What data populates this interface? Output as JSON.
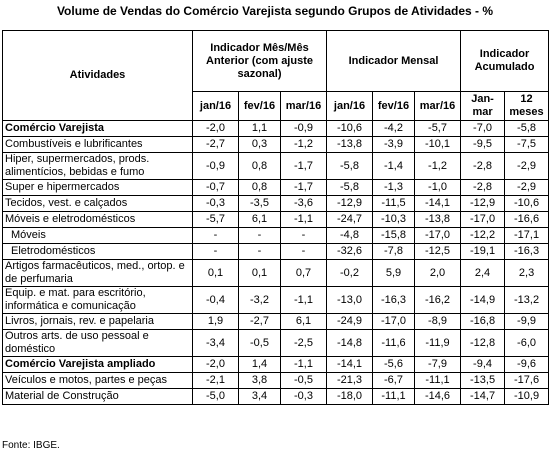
{
  "title": "Volume de Vendas do Comércio Varejista segundo Grupos de Atividades - %",
  "table": {
    "header": {
      "activity": "Atividades",
      "groups": [
        {
          "label": "Indicador Mês/Mês Anterior (com ajuste sazonal)",
          "columns": [
            "jan/16",
            "fev/16",
            "mar/16"
          ]
        },
        {
          "label": "Indicador Mensal",
          "columns": [
            "jan/16",
            "fev/16",
            "mar/16"
          ]
        },
        {
          "label": "Indicador Acumulado",
          "columns": [
            "Jan-mar",
            "12 meses"
          ]
        }
      ]
    },
    "rows": [
      {
        "label": "Comércio Varejista",
        "style": "bold",
        "values": [
          "-2,0",
          "1,1",
          "-0,9",
          "-10,6",
          "-4,2",
          "-5,7",
          "-7,0",
          "-5,8"
        ]
      },
      {
        "label": "Combustíveis e lubrificantes",
        "values": [
          "-2,7",
          "0,3",
          "-1,2",
          "-13,8",
          "-3,9",
          "-10,1",
          "-9,5",
          "-7,5"
        ]
      },
      {
        "label": "Hiper, supermercados, prods. alimentícios, bebidas e fumo",
        "values": [
          "-0,9",
          "0,8",
          "-1,7",
          "-5,8",
          "-1,4",
          "-1,2",
          "-2,8",
          "-2,9"
        ]
      },
      {
        "label": "Super e hipermercados",
        "values": [
          "-0,7",
          "0,8",
          "-1,7",
          "-5,8",
          "-1,3",
          "-1,0",
          "-2,8",
          "-2,9"
        ]
      },
      {
        "label": "Tecidos, vest. e calçados",
        "values": [
          "-0,3",
          "-3,5",
          "-3,6",
          "-12,9",
          "-11,5",
          "-14,1",
          "-12,9",
          "-10,6"
        ]
      },
      {
        "label": "Móveis e eletrodomésticos",
        "values": [
          "-5,7",
          "6,1",
          "-1,1",
          "-24,7",
          "-10,3",
          "-13,8",
          "-17,0",
          "-16,6"
        ]
      },
      {
        "label": "Móveis",
        "style": "indent",
        "values": [
          "-",
          "-",
          "-",
          "-4,8",
          "-15,8",
          "-17,0",
          "-12,2",
          "-17,1"
        ]
      },
      {
        "label": "Eletrodomésticos",
        "style": "indent",
        "values": [
          "-",
          "-",
          "-",
          "-32,6",
          "-7,8",
          "-12,5",
          "-19,1",
          "-16,3"
        ]
      },
      {
        "label": "Artigos farmacêuticos, med., ortop. e de perfumaria",
        "values": [
          "0,1",
          "0,1",
          "0,7",
          "-0,2",
          "5,9",
          "2,0",
          "2,4",
          "2,3"
        ]
      },
      {
        "label": "Equip. e mat. para escritório, informática e comunicação",
        "values": [
          "-0,4",
          "-3,2",
          "-1,1",
          "-13,0",
          "-16,3",
          "-16,2",
          "-14,9",
          "-13,2"
        ]
      },
      {
        "label": "Livros, jornais, rev. e papelaria",
        "values": [
          "1,9",
          "-2,7",
          "6,1",
          "-24,9",
          "-17,0",
          "-8,9",
          "-16,8",
          "-9,9"
        ]
      },
      {
        "label": "Outros arts. de uso pessoal e doméstico",
        "values": [
          "-3,4",
          "-0,5",
          "-2,5",
          "-14,8",
          "-11,6",
          "-11,9",
          "-12,8",
          "-6,0"
        ]
      },
      {
        "label": "Comércio Varejista ampliado",
        "style": "bold",
        "values": [
          "-2,0",
          "1,4",
          "-1,1",
          "-14,1",
          "-5,6",
          "-7,9",
          "-9,4",
          "-9,6"
        ]
      },
      {
        "label": "Veículos e motos, partes e peças",
        "values": [
          "-2,1",
          "3,8",
          "-0,5",
          "-21,3",
          "-6,7",
          "-11,1",
          "-13,5",
          "-17,6"
        ]
      },
      {
        "label": "Material de Construção",
        "values": [
          "-5,0",
          "3,4",
          "-0,3",
          "-18,0",
          "-11,1",
          "-14,6",
          "-14,7",
          "-10,9"
        ]
      }
    ]
  },
  "source": "Fonte: IBGE."
}
